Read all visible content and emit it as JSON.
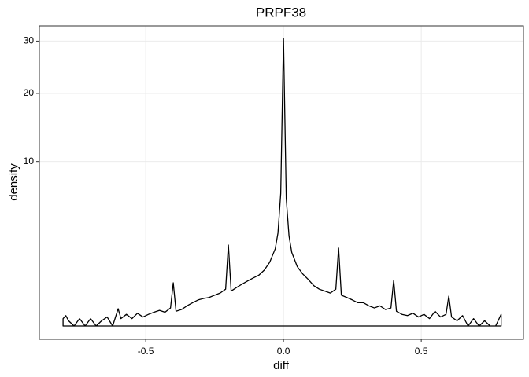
{
  "chart_data": {
    "type": "density",
    "title": "PRPF38",
    "xlabel": "diff",
    "ylabel": "density",
    "y_scale": "sqrt",
    "grid": true,
    "xlim": [
      -0.886,
      0.871
    ],
    "ylim": [
      0,
      33.3
    ],
    "xticks": [
      -0.5,
      {
        "value": 0,
        "label": "0.0"
      },
      0.5
    ],
    "yticks": [
      10,
      20,
      30
    ],
    "x": [
      -0.8,
      -0.79,
      -0.78,
      -0.76,
      -0.74,
      -0.72,
      -0.7,
      -0.68,
      -0.66,
      -0.64,
      -0.62,
      -0.6,
      -0.59,
      -0.57,
      -0.55,
      -0.53,
      -0.51,
      -0.49,
      -0.47,
      -0.45,
      -0.43,
      -0.41,
      -0.4,
      -0.39,
      -0.37,
      -0.35,
      -0.33,
      -0.31,
      -0.29,
      -0.27,
      -0.25,
      -0.23,
      -0.21,
      -0.2,
      -0.19,
      -0.17,
      -0.15,
      -0.13,
      -0.11,
      -0.09,
      -0.07,
      -0.05,
      -0.03,
      -0.02,
      -0.01,
      0,
      0.01,
      0.02,
      0.03,
      0.05,
      0.07,
      0.09,
      0.11,
      0.13,
      0.15,
      0.17,
      0.19,
      0.2,
      0.21,
      0.23,
      0.25,
      0.27,
      0.29,
      0.31,
      0.33,
      0.35,
      0.37,
      0.39,
      0.4,
      0.41,
      0.43,
      0.45,
      0.47,
      0.49,
      0.51,
      0.53,
      0.55,
      0.57,
      0.59,
      0.6,
      0.61,
      0.63,
      0.65,
      0.67,
      0.69,
      0.71,
      0.73,
      0.75,
      0.77,
      0.79
    ],
    "series": [
      {
        "color": "#000000",
        "values": [
          0.02,
          0.04,
          0.01,
          0,
          0.02,
          0,
          0.02,
          0,
          0.01,
          0.03,
          0,
          0.11,
          0.02,
          0.05,
          0.02,
          0.06,
          0.03,
          0.05,
          0.07,
          0.09,
          0.07,
          0.12,
          0.69,
          0.08,
          0.1,
          0.15,
          0.2,
          0.25,
          0.28,
          0.3,
          0.35,
          0.4,
          0.5,
          2.42,
          0.45,
          0.55,
          0.65,
          0.75,
          0.85,
          0.95,
          1.15,
          1.5,
          2.2,
          3.2,
          6.5,
          30.6,
          6.0,
          3.0,
          2.0,
          1.3,
          1.0,
          0.8,
          0.6,
          0.5,
          0.45,
          0.4,
          0.5,
          2.24,
          0.35,
          0.3,
          0.25,
          0.2,
          0.2,
          0.15,
          0.12,
          0.15,
          0.1,
          0.12,
          0.77,
          0.08,
          0.05,
          0.04,
          0.06,
          0.03,
          0.05,
          0.02,
          0.08,
          0.03,
          0.05,
          0.33,
          0.03,
          0.01,
          0.04,
          0,
          0.02,
          0,
          0.01,
          0,
          0,
          0.05
        ]
      }
    ]
  }
}
